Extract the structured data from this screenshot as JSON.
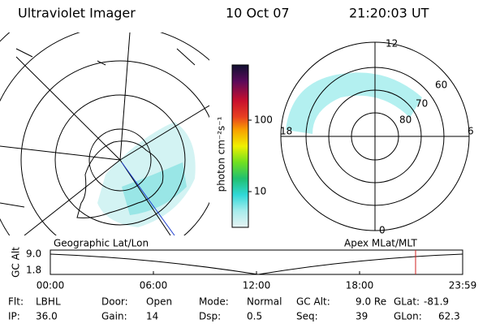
{
  "header": {
    "title": "Ultraviolet Imager",
    "date": "10 Oct 07",
    "time": "21:20:03 UT"
  },
  "colorbar": {
    "label": "photon cm⁻²s⁻¹",
    "ticks": [
      "100",
      "10"
    ]
  },
  "map_panel": {
    "label": "Geographic Lat/Lon"
  },
  "polar_panel": {
    "label": "Apex MLat/MLT",
    "mlt_labels": [
      "12",
      "18",
      "6",
      "0"
    ],
    "lat_labels": [
      "60",
      "70",
      "80"
    ]
  },
  "altitude_plot": {
    "axis_label": "GC Alt",
    "yticks": [
      "9.0",
      "1.8"
    ],
    "xticks": [
      "00:00",
      "06:00",
      "12:00",
      "18:00",
      "23:59"
    ]
  },
  "footer": [
    [
      {
        "label": "Flt:",
        "value": "LBHL"
      },
      {
        "label": "Door:",
        "value": "Open"
      },
      {
        "label": "Mode:",
        "value": "Normal"
      },
      {
        "label": "GC Alt:",
        "value": "9.0 Re"
      },
      {
        "label": "GLat:",
        "value": "-81.9"
      }
    ],
    [
      {
        "label": "IP:",
        "value": "36.0"
      },
      {
        "label": "Gain:",
        "value": "14"
      },
      {
        "label": "Dsp:",
        "value": "0.5"
      },
      {
        "label": "Seq:",
        "value": "39"
      },
      {
        "label": "GLon:",
        "value": "62.3"
      }
    ]
  ]
}
